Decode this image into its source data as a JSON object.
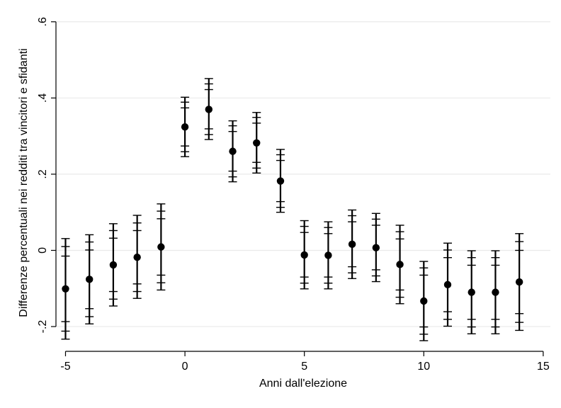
{
  "chart_data": {
    "type": "scatter",
    "xlabel": "Anni dall'elezione",
    "ylabel": "Differenze percentuali nei redditi tra vincitori e sfidanti",
    "xlim": [
      -5.4,
      15.3
    ],
    "ylim": [
      -0.265,
      0.62
    ],
    "x_ticks": [
      -5,
      0,
      5,
      10,
      15
    ],
    "x_tick_labels": [
      "-5",
      "0",
      "5",
      "10",
      "15"
    ],
    "y_ticks": [
      -0.2,
      0,
      0.2,
      0.4,
      0.6
    ],
    "y_tick_labels": [
      "-.2",
      "0",
      ".2",
      ".4",
      ".6"
    ],
    "grid": true,
    "colors": {
      "marker": "#000000",
      "grid": "#eaeaea",
      "axis": "#000000"
    },
    "points": [
      {
        "x": -5,
        "y": -0.101,
        "ci95": [
          -0.233,
          0.031
        ],
        "ci90": [
          -0.212,
          0.01
        ],
        "ci_inner": [
          -0.187,
          -0.015
        ]
      },
      {
        "x": -4,
        "y": -0.076,
        "ci95": [
          -0.193,
          0.041
        ],
        "ci90": [
          -0.174,
          0.022
        ],
        "ci_inner": [
          -0.153,
          0.001
        ]
      },
      {
        "x": -3,
        "y": -0.038,
        "ci95": [
          -0.146,
          0.07
        ],
        "ci90": [
          -0.128,
          0.052
        ],
        "ci_inner": [
          -0.108,
          0.032
        ]
      },
      {
        "x": -2,
        "y": -0.018,
        "ci95": [
          -0.126,
          0.092
        ],
        "ci90": [
          -0.108,
          0.072
        ],
        "ci_inner": [
          -0.088,
          0.052
        ]
      },
      {
        "x": -1,
        "y": 0.009,
        "ci95": [
          -0.104,
          0.122
        ],
        "ci90": [
          -0.085,
          0.103
        ],
        "ci_inner": [
          -0.065,
          0.083
        ]
      },
      {
        "x": 0,
        "y": 0.324,
        "ci95": [
          0.246,
          0.402
        ],
        "ci90": [
          0.259,
          0.389
        ],
        "ci_inner": [
          0.274,
          0.374
        ]
      },
      {
        "x": 1,
        "y": 0.37,
        "ci95": [
          0.291,
          0.451
        ],
        "ci90": [
          0.304,
          0.437
        ],
        "ci_inner": [
          0.319,
          0.422
        ]
      },
      {
        "x": 2,
        "y": 0.26,
        "ci95": [
          0.18,
          0.34
        ],
        "ci90": [
          0.193,
          0.327
        ],
        "ci_inner": [
          0.208,
          0.312
        ]
      },
      {
        "x": 3,
        "y": 0.282,
        "ci95": [
          0.203,
          0.362
        ],
        "ci90": [
          0.216,
          0.349
        ],
        "ci_inner": [
          0.231,
          0.334
        ]
      },
      {
        "x": 4,
        "y": 0.182,
        "ci95": [
          0.1,
          0.265
        ],
        "ci90": [
          0.113,
          0.251
        ],
        "ci_inner": [
          0.128,
          0.236
        ]
      },
      {
        "x": 5,
        "y": -0.012,
        "ci95": [
          -0.101,
          0.078
        ],
        "ci90": [
          -0.086,
          0.063
        ],
        "ci_inner": [
          -0.07,
          0.047
        ]
      },
      {
        "x": 6,
        "y": -0.013,
        "ci95": [
          -0.101,
          0.075
        ],
        "ci90": [
          -0.086,
          0.06
        ],
        "ci_inner": [
          -0.07,
          0.044
        ]
      },
      {
        "x": 7,
        "y": 0.016,
        "ci95": [
          -0.074,
          0.106
        ],
        "ci90": [
          -0.059,
          0.091
        ],
        "ci_inner": [
          -0.043,
          0.075
        ]
      },
      {
        "x": 8,
        "y": 0.007,
        "ci95": [
          -0.082,
          0.097
        ],
        "ci90": [
          -0.067,
          0.082
        ],
        "ci_inner": [
          -0.051,
          0.066
        ]
      },
      {
        "x": 9,
        "y": -0.037,
        "ci95": [
          -0.14,
          0.066
        ],
        "ci90": [
          -0.123,
          0.049
        ],
        "ci_inner": [
          -0.104,
          0.03
        ]
      },
      {
        "x": 10,
        "y": -0.133,
        "ci95": [
          -0.237,
          -0.029
        ],
        "ci90": [
          -0.22,
          -0.046
        ],
        "ci_inner": [
          -0.201,
          -0.065
        ]
      },
      {
        "x": 11,
        "y": -0.09,
        "ci95": [
          -0.199,
          0.019
        ],
        "ci90": [
          -0.181,
          0.001
        ],
        "ci_inner": [
          -0.161,
          -0.019
        ]
      },
      {
        "x": 12,
        "y": -0.11,
        "ci95": [
          -0.219,
          -0.001
        ],
        "ci90": [
          -0.201,
          -0.019
        ],
        "ci_inner": [
          -0.181,
          -0.039
        ]
      },
      {
        "x": 13,
        "y": -0.11,
        "ci95": [
          -0.219,
          -0.001
        ],
        "ci90": [
          -0.201,
          -0.019
        ],
        "ci_inner": [
          -0.181,
          -0.039
        ]
      },
      {
        "x": 14,
        "y": -0.083,
        "ci95": [
          -0.21,
          0.044
        ],
        "ci90": [
          -0.189,
          0.023
        ],
        "ci_inner": [
          -0.166,
          0.0
        ]
      }
    ]
  }
}
